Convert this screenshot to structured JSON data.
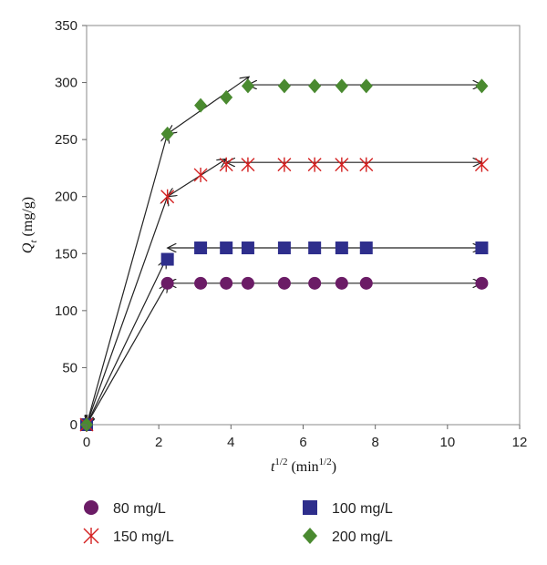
{
  "chart_data": {
    "type": "scatter",
    "xlabel": {
      "italic": "t",
      "sup": "1/2",
      "rest": " (min",
      "rest_sup": "1/2",
      "close": ")"
    },
    "ylabel": {
      "italic": "Q",
      "sub": "t",
      "rest": " (mg/g)"
    },
    "xlim": [
      0,
      12
    ],
    "ylim": [
      0,
      350
    ],
    "xticks": [
      "0",
      "2",
      "4",
      "6",
      "8",
      "10",
      "12"
    ],
    "yticks": [
      "0",
      "50",
      "100",
      "150",
      "200",
      "250",
      "300",
      "350"
    ],
    "grid": false,
    "legend_position": "bottom",
    "series": [
      {
        "name": "80 mg/L",
        "marker": "circle",
        "color": "#6b1c66",
        "x": [
          0,
          2.24,
          3.16,
          3.87,
          4.47,
          5.48,
          6.32,
          7.07,
          7.75,
          10.95
        ],
        "y": [
          0,
          124,
          124,
          124,
          124,
          124,
          124,
          124,
          124,
          124
        ]
      },
      {
        "name": "100 mg/L",
        "marker": "square",
        "color": "#2e2e8c",
        "x": [
          0,
          2.24,
          3.16,
          3.87,
          4.47,
          5.48,
          6.32,
          7.07,
          7.75,
          10.95
        ],
        "y": [
          0,
          145,
          155,
          155,
          155,
          155,
          155,
          155,
          155,
          155
        ]
      },
      {
        "name": "150 mg/L",
        "marker": "asterisk",
        "color": "#d42020",
        "x": [
          0,
          2.24,
          3.16,
          3.87,
          4.47,
          5.48,
          6.32,
          7.07,
          7.75,
          10.95
        ],
        "y": [
          0,
          200,
          219,
          228,
          228,
          228,
          228,
          228,
          228,
          228
        ]
      },
      {
        "name": "200 mg/L",
        "marker": "diamond",
        "color": "#4a8a30",
        "x": [
          0,
          2.24,
          3.16,
          3.87,
          4.47,
          5.48,
          6.32,
          7.07,
          7.75,
          10.95
        ],
        "y": [
          0,
          255,
          280,
          287,
          297,
          297,
          297,
          297,
          297,
          297
        ]
      }
    ],
    "fit_lines": [
      {
        "x": [
          0,
          2.24
        ],
        "y": [
          0,
          124
        ],
        "arrows": "both"
      },
      {
        "x": [
          0,
          2.2
        ],
        "y": [
          0,
          145
        ],
        "arrows": "both"
      },
      {
        "x": [
          0,
          2.24
        ],
        "y": [
          0,
          200
        ],
        "arrows": "both"
      },
      {
        "x": [
          0,
          2.24
        ],
        "y": [
          0,
          255
        ],
        "arrows": "both"
      },
      {
        "x": [
          2.24,
          3.87
        ],
        "y": [
          200,
          233
        ],
        "arrows": "both"
      },
      {
        "x": [
          2.24,
          4.5
        ],
        "y": [
          255,
          305
        ],
        "arrows": "both"
      },
      {
        "x": [
          2.24,
          10.95
        ],
        "y": [
          124,
          124
        ],
        "arrows": "both"
      },
      {
        "x": [
          2.24,
          10.95
        ],
        "y": [
          155,
          155
        ],
        "arrows": "both"
      },
      {
        "x": [
          3.87,
          10.95
        ],
        "y": [
          230,
          230
        ],
        "arrows": "both"
      },
      {
        "x": [
          4.47,
          10.95
        ],
        "y": [
          298,
          298
        ],
        "arrows": "both"
      }
    ]
  }
}
